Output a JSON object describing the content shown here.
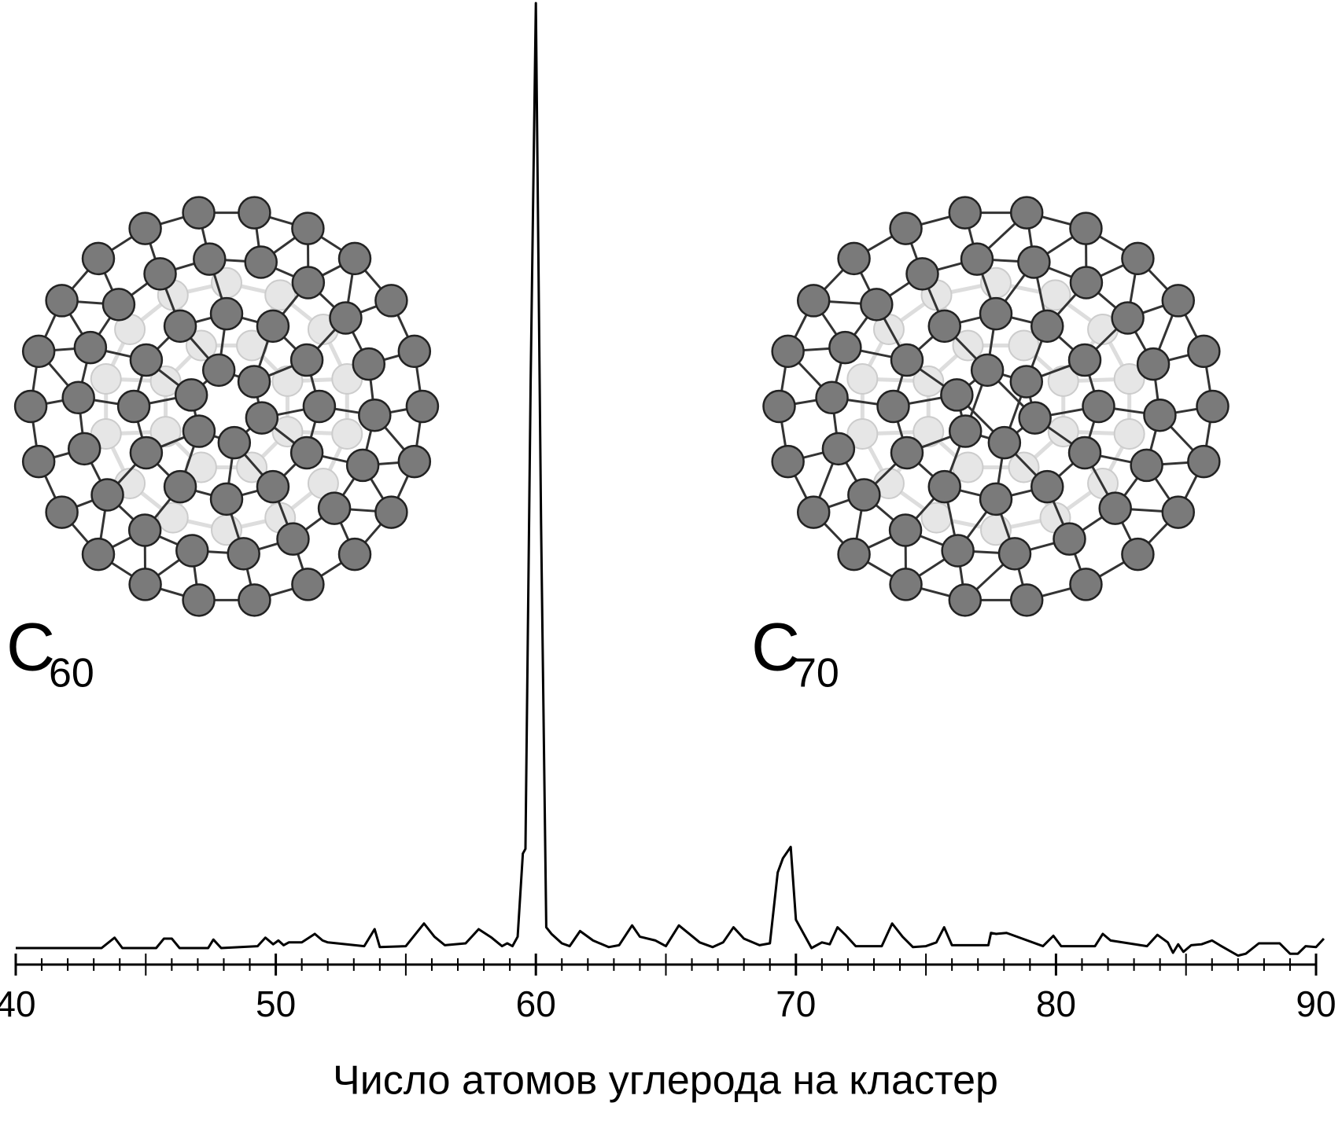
{
  "chart_data": {
    "type": "line",
    "xlabel": "Число атомов углерода на кластер",
    "annotations": [
      {
        "base": "C",
        "sub": "60"
      },
      {
        "base": "C",
        "sub": "70"
      }
    ],
    "x": [
      40,
      43.3,
      43.8,
      44.1,
      45.4,
      45.7,
      46.0,
      46.3,
      47.4,
      47.6,
      47.9,
      49.3,
      49.6,
      49.9,
      50.1,
      50.3,
      50.5,
      51.0,
      51.5,
      51.8,
      52.0,
      53.4,
      53.8,
      54.0,
      55.0,
      55.7,
      56.1,
      56.5,
      57.3,
      57.8,
      58.3,
      58.7,
      58.9,
      59.1,
      59.3,
      59.5,
      59.6,
      59.8,
      60.0,
      60.2,
      60.4,
      60.6,
      61.0,
      61.3,
      61.7,
      62.2,
      62.8,
      63.2,
      63.7,
      64.0,
      64.6,
      65.0,
      65.5,
      65.9,
      66.3,
      66.8,
      67.2,
      67.6,
      68.0,
      68.6,
      69.0,
      69.3,
      69.5,
      69.8,
      70.0,
      70.2,
      70.6,
      71.0,
      71.3,
      71.6,
      71.9,
      72.3,
      73.3,
      73.7,
      74.1,
      74.5,
      75.0,
      75.4,
      75.7,
      76.0,
      77.4,
      77.5,
      77.7,
      78.1,
      79.5,
      79.9,
      80.2,
      81.5,
      81.8,
      82.1,
      83.5,
      83.9,
      84.3,
      84.5,
      84.7,
      84.9,
      85.2,
      85.6,
      86.0,
      86.3,
      87.0,
      87.3,
      87.8,
      88.2,
      88.6,
      89.0,
      89.3,
      89.6,
      90.0,
      90.3
    ],
    "values": [
      0,
      0,
      1.1,
      0,
      0,
      1.0,
      1.0,
      0,
      0,
      0.9,
      0,
      0.2,
      1.1,
      0.4,
      0.8,
      0.3,
      0.6,
      0.6,
      1.5,
      0.8,
      0.6,
      0.2,
      2.0,
      0.1,
      0.2,
      2.6,
      1.2,
      0.3,
      0.5,
      2.0,
      1.1,
      0.2,
      0.5,
      0.2,
      1.2,
      10.0,
      10.5,
      60,
      100,
      45,
      2.2,
      1.5,
      0.5,
      0.2,
      1.8,
      0.8,
      0.1,
      0.3,
      2.4,
      1.2,
      0.8,
      0.2,
      2.4,
      1.5,
      0.6,
      0.1,
      0.6,
      2.2,
      1.0,
      0.3,
      0.5,
      8.0,
      9.5,
      10.7,
      3.0,
      2.0,
      0,
      0.6,
      0.4,
      2.2,
      1.4,
      0.2,
      0.2,
      2.6,
      1.2,
      0.1,
      0.2,
      0.6,
      2.2,
      0.3,
      0.3,
      1.6,
      1.5,
      1.6,
      0.2,
      1.3,
      0.2,
      0.2,
      1.5,
      0.8,
      0.2,
      1.4,
      0.6,
      -0.5,
      0.4,
      -0.4,
      0.3,
      0.4,
      0.8,
      0.3,
      -0.8,
      -0.6,
      0.5,
      0.5,
      0.5,
      -0.6,
      -0.6,
      0.2,
      0.1,
      1.0
    ],
    "color": "#000000",
    "xlim": [
      40,
      90
    ],
    "ylim": [
      0,
      100
    ],
    "xticks": [
      40,
      50,
      60,
      70,
      80,
      90
    ],
    "xticks_minor": [
      41,
      42,
      43,
      44,
      45,
      46,
      47,
      48,
      49,
      51,
      52,
      53,
      54,
      55,
      56,
      57,
      58,
      59,
      61,
      62,
      63,
      64,
      65,
      66,
      67,
      68,
      69,
      71,
      72,
      73,
      74,
      75,
      76,
      77,
      78,
      79,
      81,
      82,
      83,
      84,
      85,
      86,
      87,
      88,
      89
    ],
    "grid": false
  }
}
